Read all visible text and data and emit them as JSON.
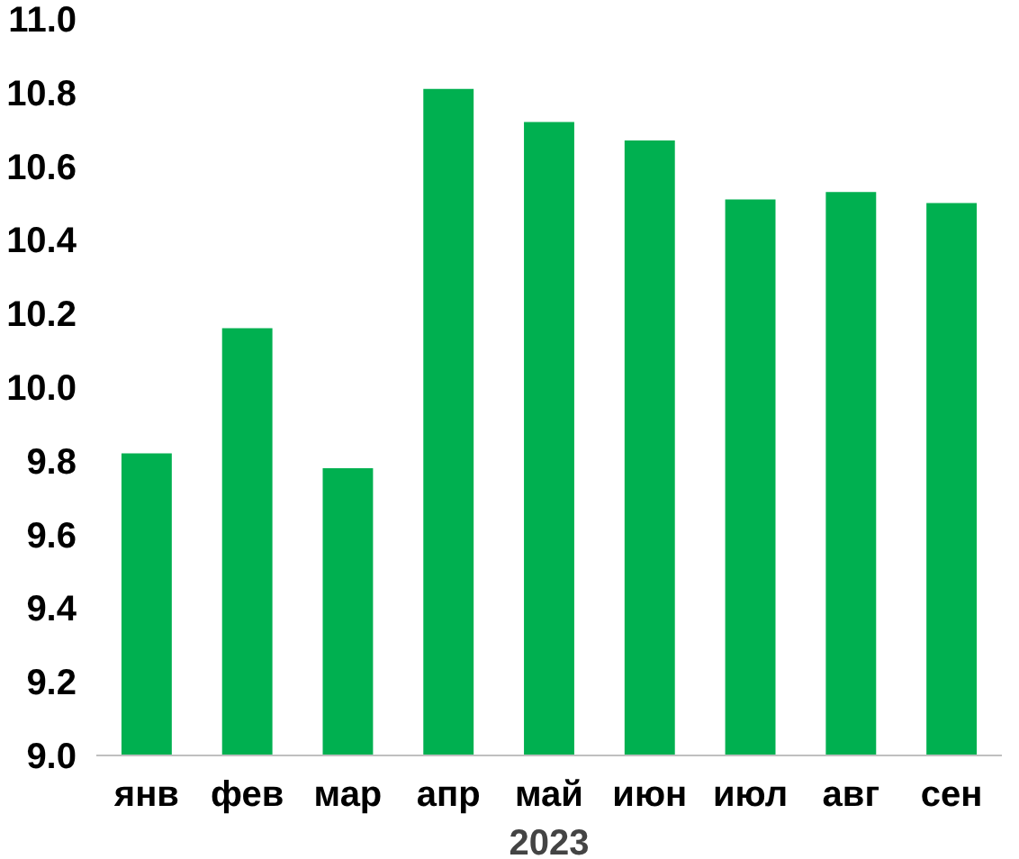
{
  "chart_data": {
    "type": "bar",
    "categories": [
      "янв",
      "фев",
      "мар",
      "апр",
      "май",
      "июн",
      "июл",
      "авг",
      "сен"
    ],
    "values": [
      9.82,
      10.16,
      9.78,
      10.81,
      10.72,
      10.67,
      10.51,
      10.53,
      10.5
    ],
    "color": "#00b050",
    "xlabel": "2023",
    "ylim": [
      9.0,
      11.0
    ],
    "yticks": [
      {
        "value": 9.0,
        "label": "9.0"
      },
      {
        "value": 9.2,
        "label": "9.2"
      },
      {
        "value": 9.4,
        "label": "9.4"
      },
      {
        "value": 9.6,
        "label": "9.6"
      },
      {
        "value": 9.8,
        "label": "9.8"
      },
      {
        "value": 10.0,
        "label": "10.0"
      },
      {
        "value": 10.2,
        "label": "10.2"
      },
      {
        "value": 10.4,
        "label": "10.4"
      },
      {
        "value": 10.6,
        "label": "10.6"
      },
      {
        "value": 10.8,
        "label": "10.8"
      },
      {
        "value": 11.0,
        "label": "11.0"
      }
    ],
    "grid": false
  }
}
